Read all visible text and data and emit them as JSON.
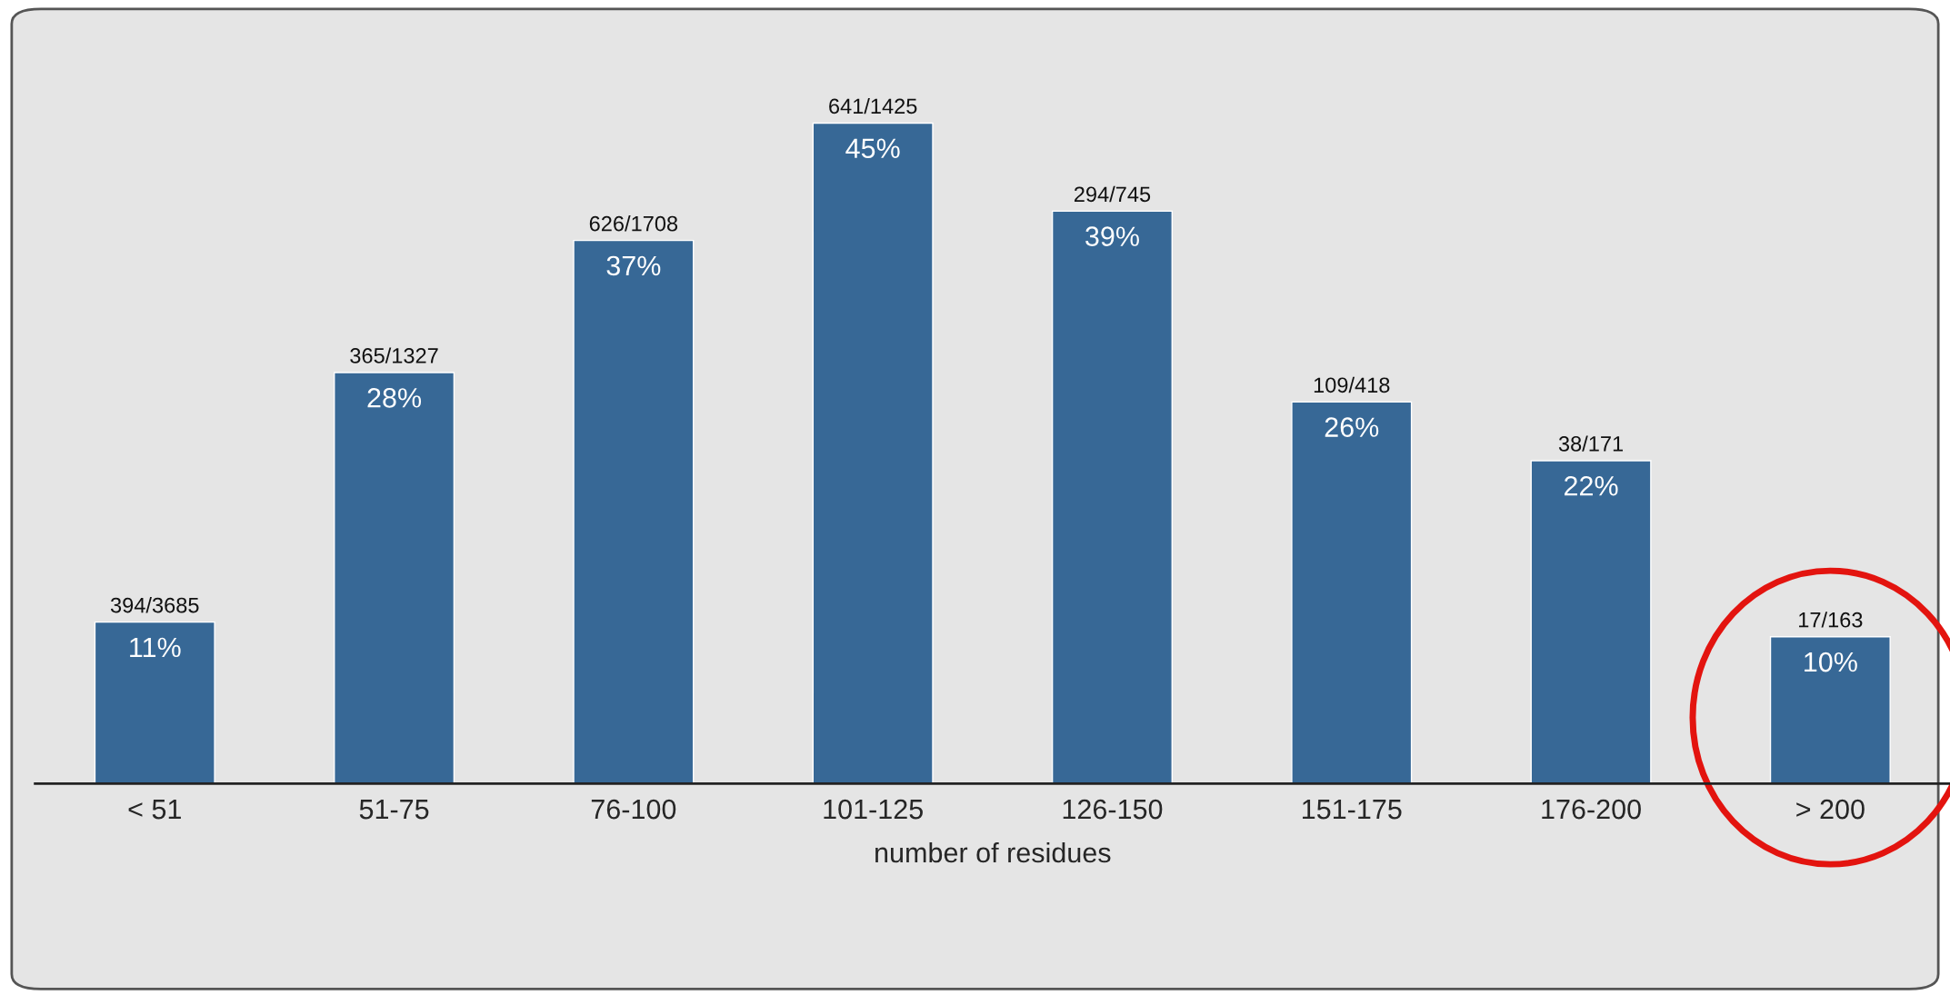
{
  "chart_data": {
    "type": "bar",
    "xlabel": "number of residues",
    "categories": [
      "< 51",
      "51-75",
      "76-100",
      "101-125",
      "126-150",
      "151-175",
      "176-200",
      "> 200"
    ],
    "values": [
      11,
      28,
      37,
      45,
      39,
      26,
      22,
      10
    ],
    "value_labels": [
      "11%",
      "28%",
      "37%",
      "45%",
      "39%",
      "26%",
      "22%",
      "10%"
    ],
    "color": "#376896",
    "grid": false,
    "annotations": [
      {
        "text": "394/3685",
        "x": "< 51",
        "y": 11
      },
      {
        "text": "365/1327",
        "x": "51-75",
        "y": 28
      },
      {
        "text": "626/1708",
        "x": "76-100",
        "y": 37
      },
      {
        "text": "641/1425",
        "x": "101-125",
        "y": 45
      },
      {
        "text": "294/745",
        "x": "126-150",
        "y": 39
      },
      {
        "text": "109/418",
        "x": "151-175",
        "y": 26
      },
      {
        "text": "38/171",
        "x": "176-200",
        "y": 22
      },
      {
        "text": "17/163",
        "x": "> 200",
        "y": 10
      }
    ]
  }
}
